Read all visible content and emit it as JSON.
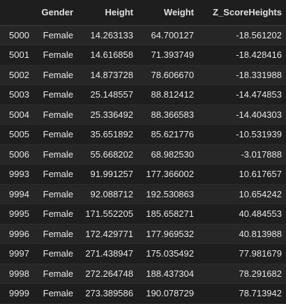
{
  "table": {
    "columns": [
      "",
      "Gender",
      "Height",
      "Weight",
      "Z_ScoreHeights"
    ],
    "rows": [
      {
        "index": "5000",
        "gender": "Female",
        "height": "14.263133",
        "weight": "64.700127",
        "z": "-18.561202"
      },
      {
        "index": "5001",
        "gender": "Female",
        "height": "14.616858",
        "weight": "71.393749",
        "z": "-18.428416"
      },
      {
        "index": "5002",
        "gender": "Female",
        "height": "14.873728",
        "weight": "78.606670",
        "z": "-18.331988"
      },
      {
        "index": "5003",
        "gender": "Female",
        "height": "25.148557",
        "weight": "88.812412",
        "z": "-14.474853"
      },
      {
        "index": "5004",
        "gender": "Female",
        "height": "25.336492",
        "weight": "88.366583",
        "z": "-14.404303"
      },
      {
        "index": "5005",
        "gender": "Female",
        "height": "35.651892",
        "weight": "85.621776",
        "z": "-10.531939"
      },
      {
        "index": "5006",
        "gender": "Female",
        "height": "55.668202",
        "weight": "68.982530",
        "z": "-3.017888"
      },
      {
        "index": "9993",
        "gender": "Female",
        "height": "91.991257",
        "weight": "177.366002",
        "z": "10.617657"
      },
      {
        "index": "9994",
        "gender": "Female",
        "height": "92.088712",
        "weight": "192.530863",
        "z": "10.654242"
      },
      {
        "index": "9995",
        "gender": "Female",
        "height": "171.552205",
        "weight": "185.658271",
        "z": "40.484553"
      },
      {
        "index": "9996",
        "gender": "Female",
        "height": "172.429771",
        "weight": "177.969532",
        "z": "40.813988"
      },
      {
        "index": "9997",
        "gender": "Female",
        "height": "271.438947",
        "weight": "175.035492",
        "z": "77.981679"
      },
      {
        "index": "9998",
        "gender": "Female",
        "height": "272.264748",
        "weight": "188.437304",
        "z": "78.291682"
      },
      {
        "index": "9999",
        "gender": "Female",
        "height": "273.389586",
        "weight": "190.078729",
        "z": "78.713942"
      }
    ]
  }
}
